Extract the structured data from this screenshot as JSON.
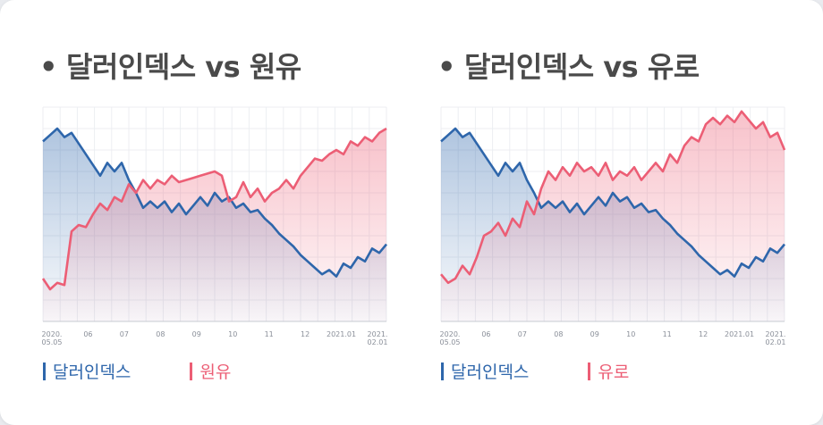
{
  "colors": {
    "blue": "#2e66ab",
    "red": "#ec5e75"
  },
  "chart_data": [
    {
      "type": "line",
      "title": "달러인덱스 vs 원유",
      "title_bullet": "•",
      "x_ticks": [
        "2020.\n05.05",
        "06",
        "07",
        "08",
        "09",
        "10",
        "11",
        "12",
        "2021.01",
        "2021.\n02.01"
      ],
      "series": [
        {
          "name": "달러인덱스",
          "values": [
            0.84,
            0.87,
            0.9,
            0.86,
            0.88,
            0.83,
            0.78,
            0.73,
            0.68,
            0.74,
            0.7,
            0.74,
            0.66,
            0.6,
            0.53,
            0.56,
            0.53,
            0.56,
            0.51,
            0.55,
            0.5,
            0.54,
            0.58,
            0.54,
            0.6,
            0.56,
            0.58,
            0.53,
            0.55,
            0.51,
            0.52,
            0.48,
            0.45,
            0.41,
            0.38,
            0.35,
            0.31,
            0.28,
            0.25,
            0.22,
            0.24,
            0.21,
            0.27,
            0.25,
            0.3,
            0.28,
            0.34,
            0.32,
            0.36
          ]
        },
        {
          "name": "원유",
          "values": [
            0.2,
            0.15,
            0.18,
            0.17,
            0.42,
            0.45,
            0.44,
            0.5,
            0.55,
            0.52,
            0.58,
            0.56,
            0.64,
            0.6,
            0.66,
            0.62,
            0.66,
            0.64,
            0.68,
            0.65,
            0.66,
            0.67,
            0.68,
            0.69,
            0.7,
            0.68,
            0.56,
            0.58,
            0.65,
            0.58,
            0.62,
            0.56,
            0.6,
            0.62,
            0.66,
            0.62,
            0.68,
            0.72,
            0.76,
            0.75,
            0.78,
            0.8,
            0.78,
            0.84,
            0.82,
            0.86,
            0.84,
            0.88,
            0.9
          ]
        }
      ]
    },
    {
      "type": "line",
      "title": "달러인덱스 vs 유로",
      "title_bullet": "•",
      "x_ticks": [
        "2020.\n05.05",
        "06",
        "07",
        "08",
        "09",
        "10",
        "11",
        "12",
        "2021.01",
        "2021.\n02.01"
      ],
      "series": [
        {
          "name": "달러인덱스",
          "values": [
            0.84,
            0.87,
            0.9,
            0.86,
            0.88,
            0.83,
            0.78,
            0.73,
            0.68,
            0.74,
            0.7,
            0.74,
            0.66,
            0.6,
            0.53,
            0.56,
            0.53,
            0.56,
            0.51,
            0.55,
            0.5,
            0.54,
            0.58,
            0.54,
            0.6,
            0.56,
            0.58,
            0.53,
            0.55,
            0.51,
            0.52,
            0.48,
            0.45,
            0.41,
            0.38,
            0.35,
            0.31,
            0.28,
            0.25,
            0.22,
            0.24,
            0.21,
            0.27,
            0.25,
            0.3,
            0.28,
            0.34,
            0.32,
            0.36
          ]
        },
        {
          "name": "유로",
          "values": [
            0.22,
            0.18,
            0.2,
            0.26,
            0.22,
            0.3,
            0.4,
            0.42,
            0.46,
            0.4,
            0.48,
            0.44,
            0.56,
            0.5,
            0.62,
            0.7,
            0.66,
            0.72,
            0.68,
            0.74,
            0.7,
            0.72,
            0.68,
            0.74,
            0.66,
            0.7,
            0.68,
            0.72,
            0.66,
            0.7,
            0.74,
            0.7,
            0.78,
            0.74,
            0.82,
            0.86,
            0.84,
            0.92,
            0.95,
            0.92,
            0.96,
            0.93,
            0.98,
            0.94,
            0.9,
            0.93,
            0.86,
            0.88,
            0.8
          ]
        }
      ]
    }
  ]
}
